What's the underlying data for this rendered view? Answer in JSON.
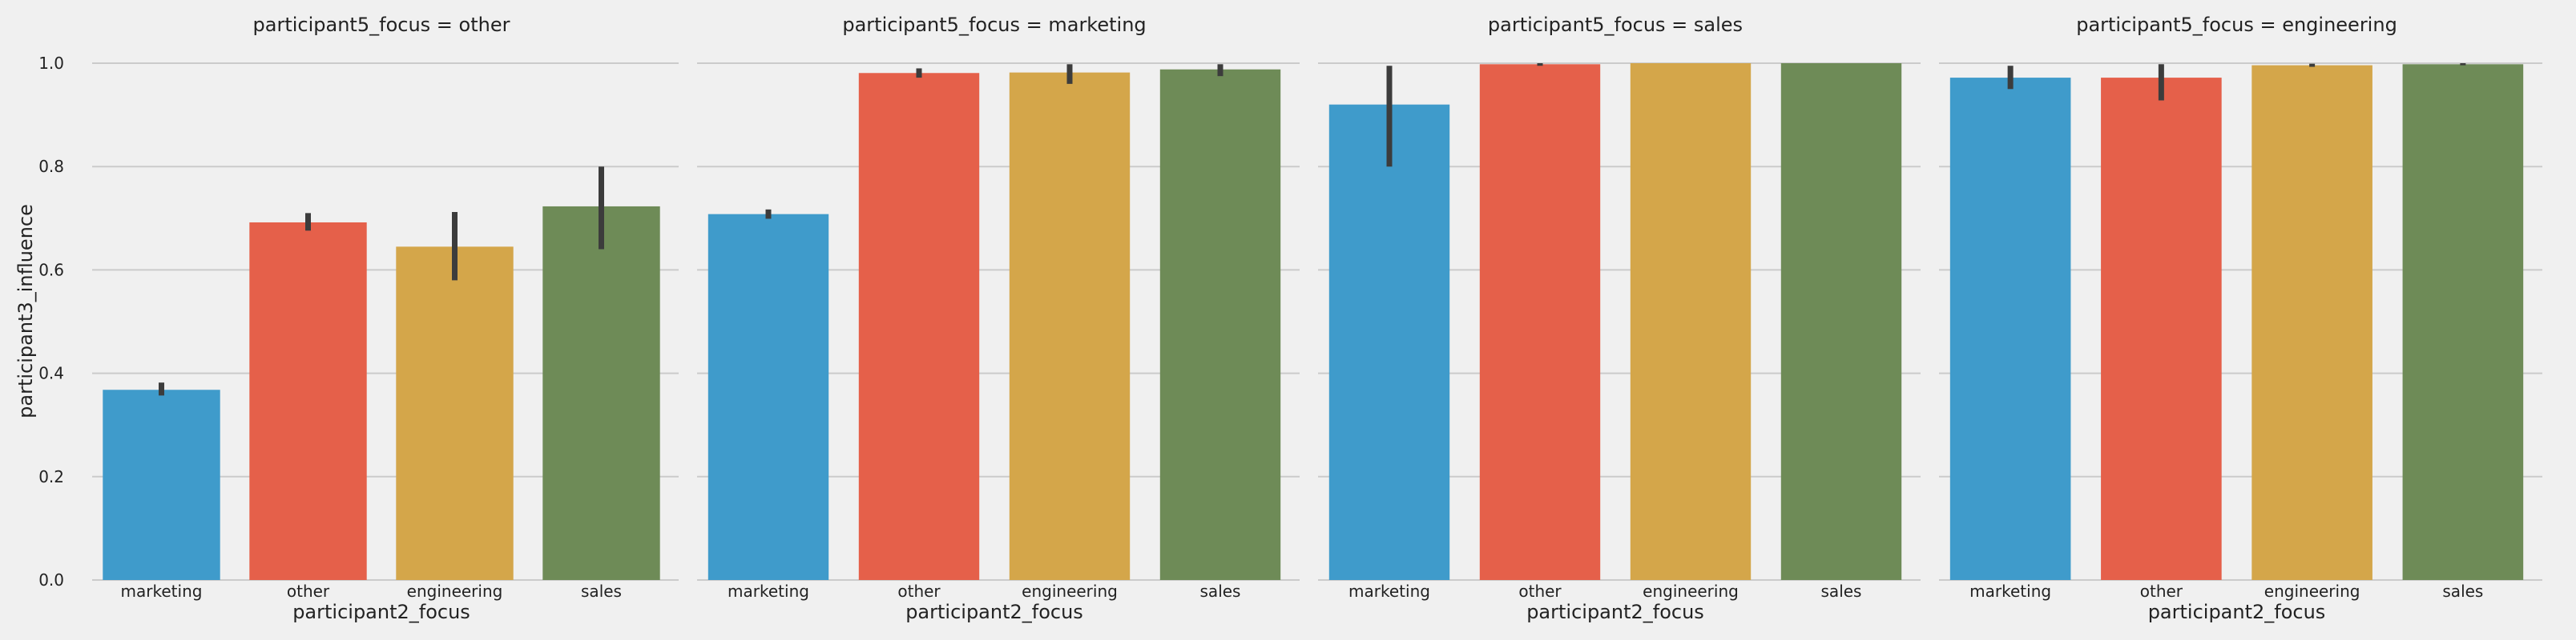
{
  "chart_data": {
    "type": "bar",
    "facet_label_prefix": "participant5_focus = ",
    "xlabel": "participant2_focus",
    "ylabel": "participant3_influence",
    "categories": [
      "marketing",
      "other",
      "engineering",
      "sales"
    ],
    "ylim": [
      0,
      1.0
    ],
    "yticks": [
      "0.0",
      "0.2",
      "0.4",
      "0.6",
      "0.8",
      "1.0"
    ],
    "grid": true,
    "colors": [
      "#3f9bcb",
      "#e5604a",
      "#d4a64a",
      "#6e8b57"
    ],
    "error_color": "#3c3c3c",
    "facets": [
      {
        "facet": "other",
        "values": [
          0.368,
          0.692,
          0.645,
          0.723
        ],
        "err_low": [
          0.357,
          0.676,
          0.58,
          0.64
        ],
        "err_high": [
          0.382,
          0.71,
          0.712,
          0.8
        ]
      },
      {
        "facet": "marketing",
        "values": [
          0.708,
          0.981,
          0.982,
          0.988
        ],
        "err_low": [
          0.699,
          0.972,
          0.96,
          0.975
        ],
        "err_high": [
          0.717,
          0.99,
          0.998,
          0.998
        ]
      },
      {
        "facet": "sales",
        "values": [
          0.92,
          0.998,
          1.0,
          1.0
        ],
        "err_low": [
          0.8,
          0.995,
          1.0,
          1.0
        ],
        "err_high": [
          0.995,
          1.0,
          1.0,
          1.0
        ]
      },
      {
        "facet": "engineering",
        "values": [
          0.972,
          0.972,
          0.996,
          0.998
        ],
        "err_low": [
          0.95,
          0.928,
          0.993,
          0.996
        ],
        "err_high": [
          0.995,
          0.998,
          0.999,
          1.0
        ]
      }
    ]
  }
}
